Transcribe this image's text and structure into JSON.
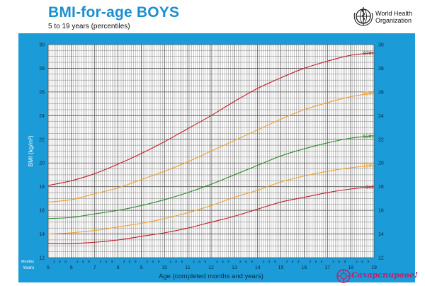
{
  "header": {
    "title": "BMI-for-age  BOYS",
    "subtitle": "5 to 19 years (percentiles)"
  },
  "logo": {
    "line1": "World Health",
    "line2": "Organization",
    "icon": "who-emblem-icon"
  },
  "watermark": {
    "text": "Сахарспираве!",
    "icon": "seal-icon"
  },
  "colors": {
    "frame": "#1b9bd7",
    "plot_bg": "#ffffff",
    "grid": "#555555",
    "p97": "#c21f28",
    "p85": "#f2a02c",
    "p50": "#2e8b2e",
    "p15": "#f2a02c",
    "p3": "#c21f28"
  },
  "chart_data": {
    "type": "line",
    "title": "BMI-for-age  BOYS",
    "subtitle": "5 to 19 years (percentiles)",
    "xlabel": "Age (completed months and years)",
    "ylabel": "BMI (kg/m²)",
    "months_row_label": "Months",
    "years_row_label": "Years",
    "month_tick_labels": [
      "3",
      "6",
      "9"
    ],
    "xlim": [
      5,
      19
    ],
    "ylim": [
      12,
      30
    ],
    "x_ticks": [
      5,
      6,
      7,
      8,
      9,
      10,
      11,
      12,
      13,
      14,
      15,
      16,
      17,
      18,
      19
    ],
    "y_ticks": [
      12,
      14,
      16,
      18,
      20,
      22,
      24,
      26,
      28,
      30
    ],
    "grid": true,
    "x": [
      5,
      6,
      7,
      8,
      9,
      10,
      11,
      12,
      13,
      14,
      15,
      16,
      17,
      18,
      19
    ],
    "series": [
      {
        "name": "97th",
        "color_key": "p97",
        "values": [
          18.1,
          18.5,
          19.1,
          19.9,
          20.8,
          21.8,
          22.9,
          24.0,
          25.2,
          26.3,
          27.2,
          28.0,
          28.6,
          29.1,
          29.3
        ]
      },
      {
        "name": "85th",
        "color_key": "p85",
        "values": [
          16.7,
          16.9,
          17.4,
          17.9,
          18.6,
          19.3,
          20.1,
          21.0,
          21.9,
          22.8,
          23.7,
          24.5,
          25.1,
          25.6,
          25.9
        ]
      },
      {
        "name": "50th",
        "color_key": "p50",
        "values": [
          15.3,
          15.4,
          15.7,
          16.0,
          16.4,
          16.9,
          17.5,
          18.2,
          19.0,
          19.8,
          20.6,
          21.2,
          21.7,
          22.1,
          22.3
        ]
      },
      {
        "name": "15th",
        "color_key": "p15",
        "values": [
          14.0,
          14.1,
          14.3,
          14.6,
          14.9,
          15.3,
          15.8,
          16.4,
          17.1,
          17.7,
          18.4,
          18.9,
          19.3,
          19.6,
          19.8
        ]
      },
      {
        "name": "3rd",
        "color_key": "p3",
        "values": [
          13.2,
          13.2,
          13.3,
          13.5,
          13.8,
          14.1,
          14.5,
          15.0,
          15.5,
          16.1,
          16.7,
          17.1,
          17.5,
          17.8,
          18.0
        ]
      }
    ]
  }
}
